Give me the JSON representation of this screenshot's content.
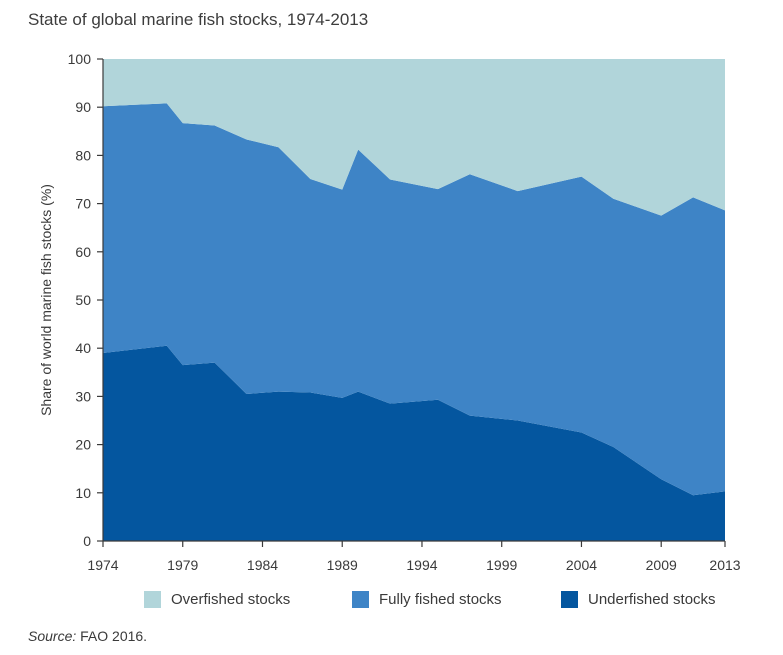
{
  "chart_data": {
    "type": "area",
    "stacked": true,
    "title": "State of global marine fish stocks, 1974-2013",
    "ylabel": "Share of world marine fish stocks (%)",
    "xlabel": "",
    "xlim": [
      1974,
      2013
    ],
    "ylim": [
      0,
      100
    ],
    "x_ticks": [
      "1974",
      "1979",
      "1984",
      "1989",
      "1994",
      "1999",
      "2004",
      "2009",
      "2013"
    ],
    "y_ticks": [
      "0",
      "10",
      "20",
      "30",
      "40",
      "50",
      "60",
      "70",
      "80",
      "90",
      "100"
    ],
    "grid": false,
    "legend_position": "bottom",
    "x": [
      1974,
      1978,
      1979,
      1981,
      1983,
      1985,
      1987,
      1989,
      1990,
      1992,
      1995,
      1997,
      2000,
      2004,
      2006,
      2009,
      2011,
      2013
    ],
    "series": [
      {
        "name": "Underfished stocks",
        "color": "#04569f",
        "values": [
          39.0,
          40.5,
          36.5,
          37.0,
          30.5,
          31.0,
          30.8,
          29.7,
          31.0,
          28.5,
          29.3,
          26.0,
          25.0,
          22.5,
          19.5,
          12.8,
          9.5,
          10.3
        ]
      },
      {
        "name": "Fully fished stocks",
        "color": "#3e84c6",
        "values": [
          51.2,
          50.3,
          50.2,
          49.2,
          52.8,
          50.7,
          44.3,
          43.2,
          50.2,
          46.5,
          43.7,
          50.1,
          47.6,
          53.1,
          51.5,
          54.7,
          61.8,
          58.3
        ]
      },
      {
        "name": "Overfished stocks",
        "color": "#b1d5da",
        "values": [
          9.8,
          9.2,
          13.3,
          13.8,
          16.7,
          18.3,
          24.9,
          27.1,
          18.8,
          25.0,
          27.0,
          23.9,
          27.4,
          24.4,
          29.0,
          32.5,
          28.7,
          31.4
        ]
      }
    ]
  },
  "source_label": "Source:",
  "source_text": " FAO 2016."
}
